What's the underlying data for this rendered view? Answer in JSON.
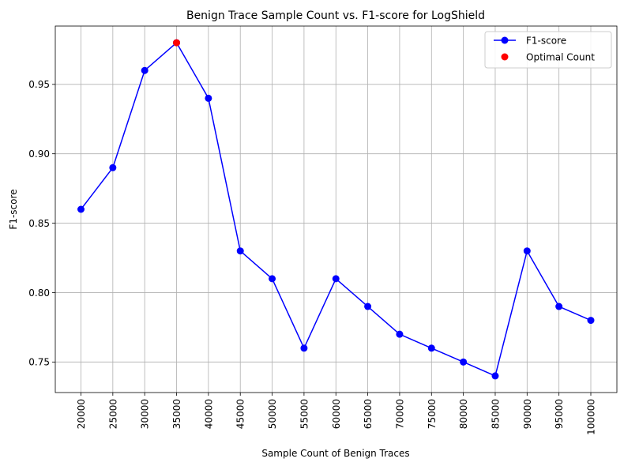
{
  "chart_data": {
    "type": "line",
    "title": "Benign Trace Sample Count vs. F1-score for LogShield",
    "xlabel": "Sample Count of Benign Traces",
    "ylabel": "F1-score",
    "x": [
      20000,
      25000,
      30000,
      35000,
      40000,
      45000,
      50000,
      55000,
      60000,
      65000,
      70000,
      75000,
      80000,
      85000,
      90000,
      95000,
      100000
    ],
    "x_tick_labels": [
      "20000",
      "25000",
      "30000",
      "35000",
      "40000",
      "45000",
      "50000",
      "55000",
      "60000",
      "65000",
      "70000",
      "75000",
      "80000",
      "85000",
      "90000",
      "95000",
      "100000"
    ],
    "y_ticks": [
      0.75,
      0.8,
      0.85,
      0.9,
      0.95
    ],
    "y_tick_labels": [
      "0.75",
      "0.80",
      "0.85",
      "0.90",
      "0.95"
    ],
    "ylim": [
      0.728,
      0.992
    ],
    "grid": true,
    "legend_position": "top-right",
    "series": [
      {
        "name": "F1-score",
        "color": "#0000ff",
        "marker": "circle",
        "values": [
          0.86,
          0.89,
          0.96,
          0.98,
          0.94,
          0.83,
          0.81,
          0.76,
          0.81,
          0.79,
          0.77,
          0.76,
          0.75,
          0.74,
          0.83,
          0.79,
          0.78
        ]
      }
    ],
    "highlight": {
      "name": "Optimal Count",
      "color": "#ff0000",
      "marker": "circle",
      "x": 35000,
      "y": 0.98
    }
  }
}
